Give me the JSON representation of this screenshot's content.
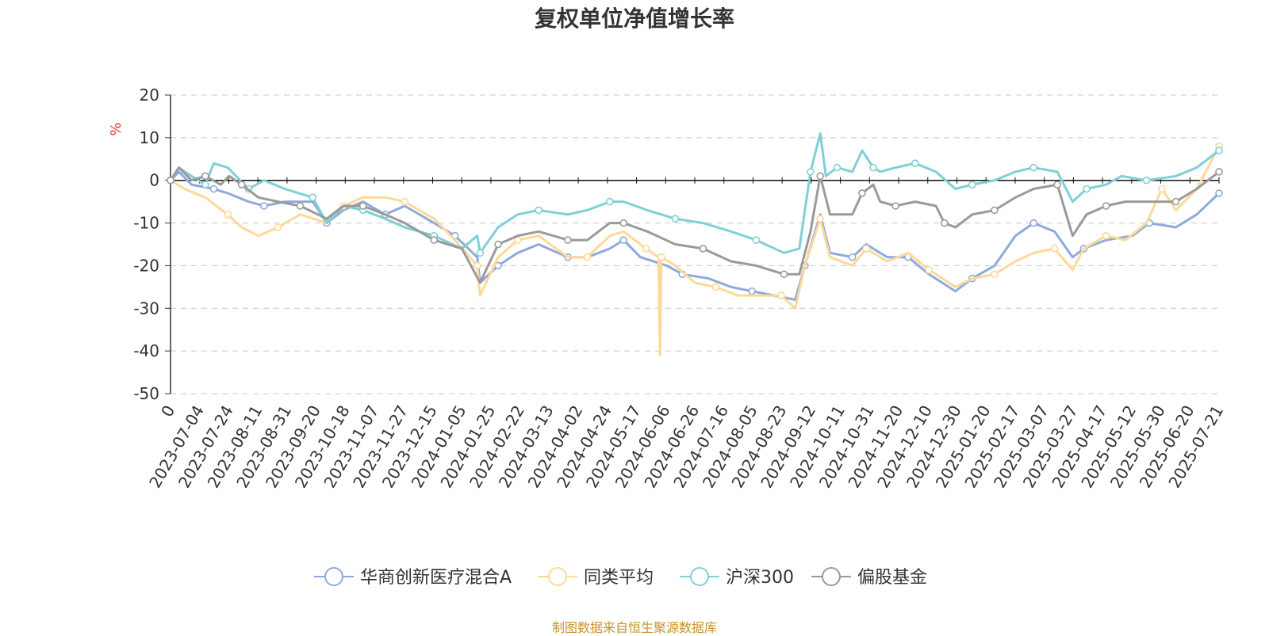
{
  "chart_data": {
    "type": "line",
    "title": "复权单位净值增长率",
    "ylabel": "%",
    "ylim": [
      -50,
      20
    ],
    "yticks": [
      20,
      10,
      0,
      -10,
      -20,
      -30,
      -40,
      -50
    ],
    "x_range": [
      "2023-06-30",
      "2025-07-21"
    ],
    "x_ticks": [
      "0",
      "2023-07-04",
      "2023-07-24",
      "2023-08-11",
      "2023-08-31",
      "2023-09-20",
      "2023-10-18",
      "2023-11-07",
      "2023-11-27",
      "2023-12-15",
      "2024-01-05",
      "2024-01-25",
      "2024-02-22",
      "2024-03-13",
      "2024-04-02",
      "2024-04-24",
      "2024-05-17",
      "2024-06-06",
      "2024-06-26",
      "2024-07-16",
      "2024-08-05",
      "2024-08-23",
      "2024-09-12",
      "2024-10-11",
      "2024-10-31",
      "2024-11-20",
      "2024-12-10",
      "2024-12-30",
      "2025-01-20",
      "2025-02-17",
      "2025-03-07",
      "2025-03-27",
      "2025-04-17",
      "2025-05-12",
      "2025-05-30",
      "2025-06-20",
      "2025-07-21"
    ],
    "grid": "horizontal-dashed",
    "legend_position": "bottom",
    "series": [
      {
        "name": "华商创新医疗混合A",
        "color": "#8eaadc",
        "points": [
          [
            "2023-06-30",
            0
          ],
          [
            "2023-07-06",
            2
          ],
          [
            "2023-07-15",
            -1
          ],
          [
            "2023-07-31",
            -2
          ],
          [
            "2023-08-10",
            -3
          ],
          [
            "2023-08-25",
            -5
          ],
          [
            "2023-09-05",
            -6
          ],
          [
            "2023-09-20",
            -5
          ],
          [
            "2023-10-10",
            -5
          ],
          [
            "2023-10-20",
            -10
          ],
          [
            "2023-11-01",
            -7
          ],
          [
            "2023-11-15",
            -5
          ],
          [
            "2023-12-01",
            -8
          ],
          [
            "2023-12-15",
            -6
          ],
          [
            "2024-01-05",
            -10
          ],
          [
            "2024-01-20",
            -13
          ],
          [
            "2024-02-05",
            -18
          ],
          [
            "2024-02-07",
            -24
          ],
          [
            "2024-02-20",
            -20
          ],
          [
            "2024-03-05",
            -17
          ],
          [
            "2024-03-20",
            -15
          ],
          [
            "2024-04-10",
            -18
          ],
          [
            "2024-04-24",
            -18
          ],
          [
            "2024-05-10",
            -16
          ],
          [
            "2024-05-20",
            -14
          ],
          [
            "2024-06-01",
            -18
          ],
          [
            "2024-06-20",
            -20
          ],
          [
            "2024-07-01",
            -22
          ],
          [
            "2024-07-20",
            -23
          ],
          [
            "2024-08-05",
            -25
          ],
          [
            "2024-08-20",
            -26
          ],
          [
            "2024-09-05",
            -27
          ],
          [
            "2024-09-20",
            -28
          ],
          [
            "2024-09-27",
            -20
          ],
          [
            "2024-10-08",
            -8
          ],
          [
            "2024-10-15",
            -17
          ],
          [
            "2024-10-31",
            -18
          ],
          [
            "2024-11-10",
            -15
          ],
          [
            "2024-11-25",
            -18
          ],
          [
            "2024-12-10",
            -18
          ],
          [
            "2024-12-25",
            -22
          ],
          [
            "2025-01-13",
            -26
          ],
          [
            "2025-01-25",
            -23
          ],
          [
            "2025-02-10",
            -20
          ],
          [
            "2025-02-25",
            -13
          ],
          [
            "2025-03-10",
            -10
          ],
          [
            "2025-03-25",
            -12
          ],
          [
            "2025-04-07",
            -18
          ],
          [
            "2025-04-15",
            -16
          ],
          [
            "2025-05-01",
            -14
          ],
          [
            "2025-05-20",
            -13
          ],
          [
            "2025-06-01",
            -10
          ],
          [
            "2025-06-20",
            -11
          ],
          [
            "2025-07-05",
            -8
          ],
          [
            "2025-07-21",
            -3
          ]
        ]
      },
      {
        "name": "同类平均",
        "color": "#fdd998",
        "points": [
          [
            "2023-06-30",
            0
          ],
          [
            "2023-07-10",
            -2
          ],
          [
            "2023-07-25",
            -4
          ],
          [
            "2023-08-10",
            -8
          ],
          [
            "2023-08-20",
            -11
          ],
          [
            "2023-09-01",
            -13
          ],
          [
            "2023-09-15",
            -11
          ],
          [
            "2023-10-01",
            -8
          ],
          [
            "2023-10-20",
            -10
          ],
          [
            "2023-11-01",
            -6
          ],
          [
            "2023-11-15",
            -4
          ],
          [
            "2023-12-01",
            -4
          ],
          [
            "2023-12-15",
            -5
          ],
          [
            "2024-01-05",
            -9
          ],
          [
            "2024-01-20",
            -14
          ],
          [
            "2024-02-05",
            -20
          ],
          [
            "2024-02-07",
            -27
          ],
          [
            "2024-02-20",
            -18
          ],
          [
            "2024-03-05",
            -14
          ],
          [
            "2024-03-20",
            -13
          ],
          [
            "2024-04-10",
            -18
          ],
          [
            "2024-04-24",
            -18
          ],
          [
            "2024-05-10",
            -13
          ],
          [
            "2024-05-20",
            -12
          ],
          [
            "2024-06-05",
            -16
          ],
          [
            "2024-06-14",
            -18
          ],
          [
            "2024-06-15",
            -41
          ],
          [
            "2024-06-16",
            -18
          ],
          [
            "2024-06-26",
            -20
          ],
          [
            "2024-07-10",
            -24
          ],
          [
            "2024-07-25",
            -25
          ],
          [
            "2024-08-10",
            -27
          ],
          [
            "2024-08-25",
            -27
          ],
          [
            "2024-09-10",
            -27
          ],
          [
            "2024-09-20",
            -30
          ],
          [
            "2024-09-27",
            -20
          ],
          [
            "2024-10-08",
            -9
          ],
          [
            "2024-10-15",
            -18
          ],
          [
            "2024-10-31",
            -20
          ],
          [
            "2024-11-10",
            -16
          ],
          [
            "2024-11-25",
            -19
          ],
          [
            "2024-12-10",
            -17
          ],
          [
            "2024-12-25",
            -21
          ],
          [
            "2025-01-13",
            -25
          ],
          [
            "2025-01-25",
            -23
          ],
          [
            "2025-02-10",
            -22
          ],
          [
            "2025-02-25",
            -19
          ],
          [
            "2025-03-10",
            -17
          ],
          [
            "2025-03-25",
            -16
          ],
          [
            "2025-04-07",
            -21
          ],
          [
            "2025-04-15",
            -16
          ],
          [
            "2025-05-01",
            -13
          ],
          [
            "2025-05-15",
            -14
          ],
          [
            "2025-05-30",
            -10
          ],
          [
            "2025-06-10",
            -2
          ],
          [
            "2025-06-20",
            -7
          ],
          [
            "2025-07-05",
            -2
          ],
          [
            "2025-07-21",
            8
          ]
        ]
      },
      {
        "name": "沪深300",
        "color": "#7fd0d6",
        "points": [
          [
            "2023-06-30",
            0
          ],
          [
            "2023-07-06",
            3
          ],
          [
            "2023-07-15",
            1
          ],
          [
            "2023-07-25",
            -1
          ],
          [
            "2023-07-31",
            4
          ],
          [
            "2023-08-10",
            3
          ],
          [
            "2023-08-25",
            -2
          ],
          [
            "2023-09-05",
            0
          ],
          [
            "2023-09-20",
            -2
          ],
          [
            "2023-10-10",
            -4
          ],
          [
            "2023-10-20",
            -10
          ],
          [
            "2023-11-01",
            -6
          ],
          [
            "2023-11-15",
            -7
          ],
          [
            "2023-12-01",
            -9
          ],
          [
            "2023-12-15",
            -11
          ],
          [
            "2024-01-05",
            -13
          ],
          [
            "2024-01-25",
            -16
          ],
          [
            "2024-02-05",
            -13
          ],
          [
            "2024-02-07",
            -17
          ],
          [
            "2024-02-20",
            -11
          ],
          [
            "2024-03-05",
            -8
          ],
          [
            "2024-03-20",
            -7
          ],
          [
            "2024-04-10",
            -8
          ],
          [
            "2024-04-24",
            -7
          ],
          [
            "2024-05-10",
            -5
          ],
          [
            "2024-05-20",
            -5
          ],
          [
            "2024-06-06",
            -7
          ],
          [
            "2024-06-26",
            -9
          ],
          [
            "2024-07-16",
            -10
          ],
          [
            "2024-08-05",
            -12
          ],
          [
            "2024-08-23",
            -14
          ],
          [
            "2024-09-12",
            -17
          ],
          [
            "2024-09-23",
            -16
          ],
          [
            "2024-10-01",
            2
          ],
          [
            "2024-10-08",
            11
          ],
          [
            "2024-10-12",
            1
          ],
          [
            "2024-10-20",
            3
          ],
          [
            "2024-10-31",
            2
          ],
          [
            "2024-11-07",
            7
          ],
          [
            "2024-11-15",
            3
          ],
          [
            "2024-11-20",
            2
          ],
          [
            "2024-12-01",
            3
          ],
          [
            "2024-12-15",
            4
          ],
          [
            "2024-12-30",
            2
          ],
          [
            "2025-01-13",
            -2
          ],
          [
            "2025-01-25",
            -1
          ],
          [
            "2025-02-10",
            0
          ],
          [
            "2025-02-25",
            2
          ],
          [
            "2025-03-10",
            3
          ],
          [
            "2025-03-27",
            2
          ],
          [
            "2025-04-07",
            -5
          ],
          [
            "2025-04-17",
            -2
          ],
          [
            "2025-05-01",
            -1
          ],
          [
            "2025-05-12",
            1
          ],
          [
            "2025-05-30",
            0
          ],
          [
            "2025-06-20",
            1
          ],
          [
            "2025-07-05",
            3
          ],
          [
            "2025-07-21",
            7
          ]
        ]
      },
      {
        "name": "偏股基金",
        "color": "#9a9a9a",
        "points": [
          [
            "2023-06-30",
            0
          ],
          [
            "2023-07-06",
            3
          ],
          [
            "2023-07-15",
            0
          ],
          [
            "2023-07-25",
            1
          ],
          [
            "2023-08-05",
            -1
          ],
          [
            "2023-08-11",
            1
          ],
          [
            "2023-08-20",
            -1
          ],
          [
            "2023-09-01",
            -4
          ],
          [
            "2023-09-15",
            -5
          ],
          [
            "2023-10-01",
            -6
          ],
          [
            "2023-10-20",
            -9
          ],
          [
            "2023-11-01",
            -6
          ],
          [
            "2023-11-15",
            -6
          ],
          [
            "2023-12-01",
            -8
          ],
          [
            "2023-12-15",
            -10
          ],
          [
            "2024-01-05",
            -14
          ],
          [
            "2024-01-25",
            -16
          ],
          [
            "2024-02-07",
            -24
          ],
          [
            "2024-02-20",
            -15
          ],
          [
            "2024-03-05",
            -13
          ],
          [
            "2024-03-20",
            -12
          ],
          [
            "2024-04-10",
            -14
          ],
          [
            "2024-04-24",
            -14
          ],
          [
            "2024-05-10",
            -10
          ],
          [
            "2024-05-20",
            -10
          ],
          [
            "2024-06-06",
            -12
          ],
          [
            "2024-06-26",
            -15
          ],
          [
            "2024-07-16",
            -16
          ],
          [
            "2024-08-05",
            -19
          ],
          [
            "2024-08-23",
            -20
          ],
          [
            "2024-09-12",
            -22
          ],
          [
            "2024-09-23",
            -22
          ],
          [
            "2024-10-01",
            -12
          ],
          [
            "2024-10-08",
            1
          ],
          [
            "2024-10-15",
            -8
          ],
          [
            "2024-10-31",
            -8
          ],
          [
            "2024-11-07",
            -3
          ],
          [
            "2024-11-15",
            -1
          ],
          [
            "2024-11-20",
            -5
          ],
          [
            "2024-12-01",
            -6
          ],
          [
            "2024-12-15",
            -5
          ],
          [
            "2024-12-30",
            -6
          ],
          [
            "2025-01-05",
            -10
          ],
          [
            "2025-01-13",
            -11
          ],
          [
            "2025-01-25",
            -8
          ],
          [
            "2025-02-10",
            -7
          ],
          [
            "2025-02-25",
            -4
          ],
          [
            "2025-03-10",
            -2
          ],
          [
            "2025-03-27",
            -1
          ],
          [
            "2025-04-07",
            -13
          ],
          [
            "2025-04-17",
            -8
          ],
          [
            "2025-05-01",
            -6
          ],
          [
            "2025-05-15",
            -5
          ],
          [
            "2025-05-30",
            -5
          ],
          [
            "2025-06-20",
            -5
          ],
          [
            "2025-07-05",
            -2
          ],
          [
            "2025-07-21",
            2
          ]
        ]
      }
    ]
  },
  "footer": {
    "source": "制图数据来自恒生聚源数据库"
  }
}
